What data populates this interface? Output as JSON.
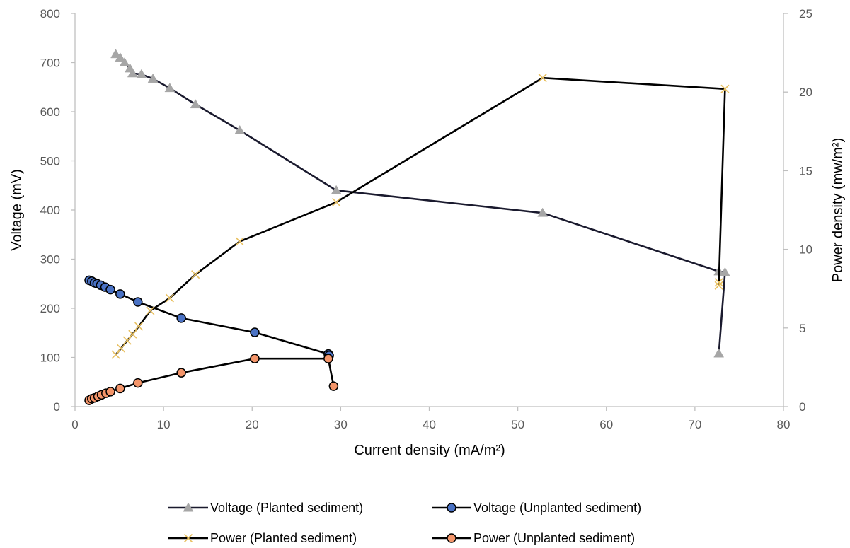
{
  "chart_data": {
    "type": "line",
    "title": "",
    "xlabel": "Current density (mA/m²)",
    "ylabel": "Voltage (mV)",
    "y2label": "Power density (mw/m²)",
    "xlim": [
      0,
      80
    ],
    "ylim": [
      0,
      800
    ],
    "y2lim": [
      0,
      25
    ],
    "x_ticks": [
      0,
      10,
      20,
      30,
      40,
      50,
      60,
      70,
      80
    ],
    "y_ticks": [
      0,
      100,
      200,
      300,
      400,
      500,
      600,
      700,
      800
    ],
    "y2_ticks": [
      0,
      5,
      10,
      15,
      20,
      25
    ],
    "grid": false,
    "legend_position": "bottom",
    "series": [
      {
        "name": "Voltage (Planted sediment)",
        "axis": "left",
        "marker": "triangle",
        "marker_color": "#a6a6a6",
        "line_color": "#1a1a2e",
        "points": [
          [
            4.6,
            717
          ],
          [
            5.1,
            710
          ],
          [
            5.6,
            700
          ],
          [
            6.2,
            688
          ],
          [
            6.5,
            678
          ],
          [
            7.5,
            676
          ],
          [
            8.8,
            667
          ],
          [
            10.7,
            648
          ],
          [
            13.6,
            615
          ],
          [
            18.6,
            562
          ],
          [
            29.5,
            440
          ],
          [
            52.8,
            394
          ],
          [
            72.7,
            275
          ],
          [
            73.4,
            273
          ],
          [
            72.7,
            108
          ]
        ]
      },
      {
        "name": "Voltage (Unplanted sediment)",
        "axis": "left",
        "marker": "circle",
        "marker_color": "#4a72c4",
        "line_color": "#000000",
        "points": [
          [
            1.6,
            257
          ],
          [
            1.9,
            255
          ],
          [
            2.2,
            252
          ],
          [
            2.5,
            250
          ],
          [
            2.9,
            247
          ],
          [
            3.4,
            243
          ],
          [
            4.0,
            238
          ],
          [
            5.1,
            229
          ],
          [
            7.1,
            213
          ],
          [
            12.0,
            180
          ],
          [
            20.3,
            151
          ],
          [
            28.6,
            107
          ],
          [
            28.7,
            104
          ]
        ]
      },
      {
        "name": "Power (Planted sediment)",
        "axis": "right",
        "marker": "cross",
        "marker_color": "#e8c060",
        "line_color": "#000000",
        "points": [
          [
            4.6,
            3.3
          ],
          [
            5.2,
            3.7
          ],
          [
            5.9,
            4.2
          ],
          [
            6.5,
            4.6
          ],
          [
            7.2,
            5.1
          ],
          [
            8.5,
            6.1
          ],
          [
            10.7,
            6.9
          ],
          [
            13.6,
            8.4
          ],
          [
            18.6,
            10.5
          ],
          [
            29.5,
            13.0
          ],
          [
            52.8,
            20.9
          ],
          [
            73.4,
            20.2
          ],
          [
            72.7,
            7.9
          ],
          [
            72.7,
            7.7
          ]
        ]
      },
      {
        "name": "Power (Unplanted sediment)",
        "axis": "right",
        "marker": "circle",
        "marker_color": "#f4956a",
        "line_color": "#000000",
        "points": [
          [
            1.6,
            0.4
          ],
          [
            1.9,
            0.5
          ],
          [
            2.2,
            0.55
          ],
          [
            2.6,
            0.65
          ],
          [
            3.0,
            0.75
          ],
          [
            3.5,
            0.85
          ],
          [
            4.0,
            0.95
          ],
          [
            5.1,
            1.15
          ],
          [
            7.1,
            1.5
          ],
          [
            12.0,
            2.15
          ],
          [
            20.3,
            3.05
          ],
          [
            28.6,
            3.05
          ],
          [
            29.2,
            1.3
          ]
        ]
      }
    ]
  }
}
